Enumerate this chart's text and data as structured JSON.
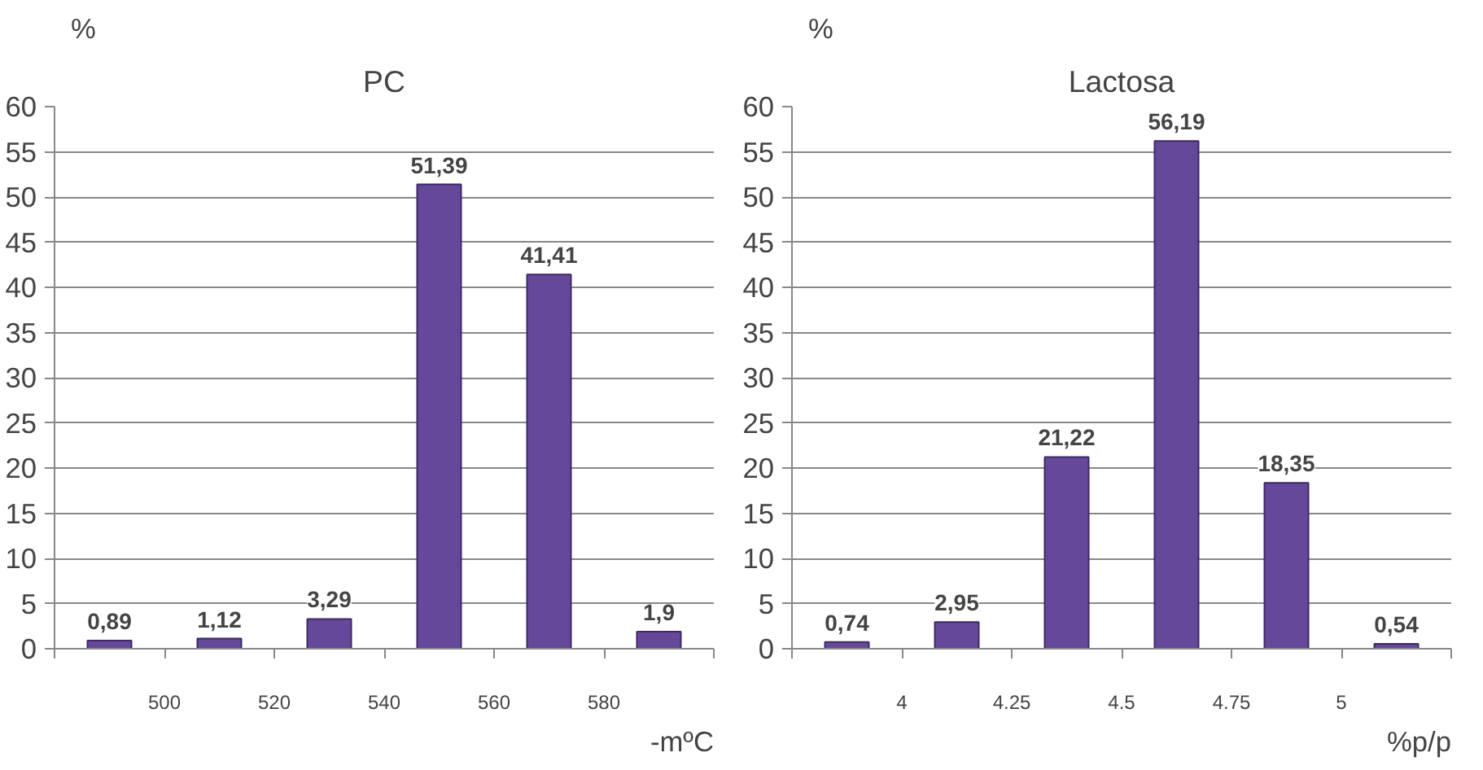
{
  "chart_data": [
    {
      "type": "histogram",
      "title": "PC",
      "ylabel": "%",
      "xlabel": "-mºC",
      "bins": [
        480,
        500,
        520,
        540,
        560,
        580,
        600
      ],
      "values": [
        0.89,
        1.12,
        3.29,
        51.39,
        41.41,
        1.9
      ],
      "value_labels": [
        "0,89",
        "1,12",
        "3,29",
        "51,39",
        "41,41",
        "1,9"
      ],
      "color": "#66489a",
      "ylim": [
        0,
        60
      ],
      "yticks": [
        0,
        5,
        10,
        15,
        20,
        25,
        30,
        35,
        40,
        45,
        50,
        55,
        60
      ],
      "xlim": [
        480,
        600
      ],
      "xticks": [
        {
          "value": 480,
          "label": null
        },
        500,
        520,
        540,
        560,
        580,
        {
          "value": 600,
          "label": null
        }
      ],
      "grid": "y"
    },
    {
      "type": "histogram",
      "title": "Lactosa",
      "ylabel": "%",
      "xlabel": "%p/p",
      "bins": [
        3.75,
        4,
        4.25,
        4.5,
        4.75,
        5,
        5.25
      ],
      "values": [
        0.74,
        2.95,
        21.22,
        56.19,
        18.35,
        0.54
      ],
      "value_labels": [
        "0,74",
        "2,95",
        "21,22",
        "56,19",
        "18,35",
        "0,54"
      ],
      "color": "#66489a",
      "ylim": [
        0,
        60
      ],
      "yticks": [
        0,
        5,
        10,
        15,
        20,
        25,
        30,
        35,
        40,
        45,
        50,
        55,
        60
      ],
      "xlim": [
        3.75,
        5.25
      ],
      "xticks": [
        {
          "value": 3.75,
          "label": null
        },
        4,
        4.25,
        4.5,
        4.75,
        5,
        {
          "value": 5.25,
          "label": null
        }
      ],
      "grid": "y"
    }
  ]
}
